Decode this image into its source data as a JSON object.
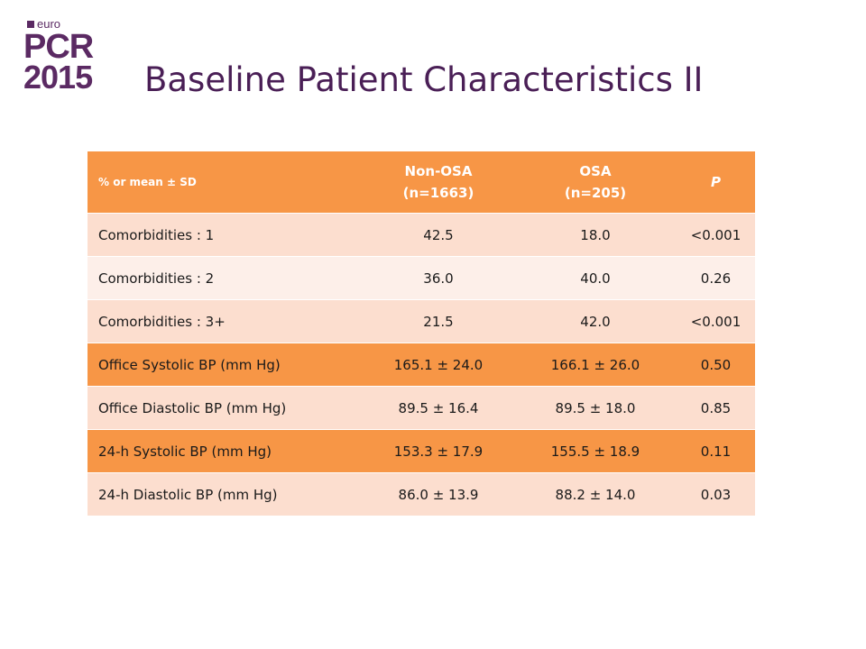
{
  "logo": {
    "prefix": "euro",
    "brand": "PCR",
    "year": "2015"
  },
  "title": "Baseline Patient Characteristics II",
  "table": {
    "headers": [
      {
        "line1": "% or mean ± SD",
        "line2": ""
      },
      {
        "line1": "Non-OSA",
        "line2": "(n=1663)"
      },
      {
        "line1": "OSA",
        "line2": "(n=205)"
      },
      {
        "line1": "P",
        "line2": ""
      }
    ],
    "rows": [
      {
        "label": "Comorbidities : 1",
        "non_osa": "42.5",
        "osa": "18.0",
        "p": "<0.001"
      },
      {
        "label": "Comorbidities : 2",
        "non_osa": "36.0",
        "osa": "40.0",
        "p": "0.26"
      },
      {
        "label": "Comorbidities : 3+",
        "non_osa": "21.5",
        "osa": "42.0",
        "p": "<0.001"
      },
      {
        "label": "Office Systolic BP (mm Hg)",
        "non_osa": "165.1 ± 24.0",
        "osa": "166.1 ± 26.0",
        "p": "0.50"
      },
      {
        "label": "Office Diastolic BP (mm Hg)",
        "non_osa": "89.5 ± 16.4",
        "osa": "89.5 ± 18.0",
        "p": "0.85"
      },
      {
        "label": "24-h Systolic BP (mm Hg)",
        "non_osa": "153.3 ± 17.9",
        "osa": "155.5 ± 18.9",
        "p": "0.11"
      },
      {
        "label": "24-h Diastolic BP (mm Hg)",
        "non_osa": "86.0 ± 13.9",
        "osa": "88.2 ± 14.0",
        "p": "0.03"
      }
    ]
  },
  "colors": {
    "header_bg": "#f79646",
    "row_light": "#fcdecf",
    "row_lighter": "#fdefe9",
    "highlight_row": "#f79646",
    "title_color": "#4a1f56",
    "logo_color": "#5b2a63"
  }
}
